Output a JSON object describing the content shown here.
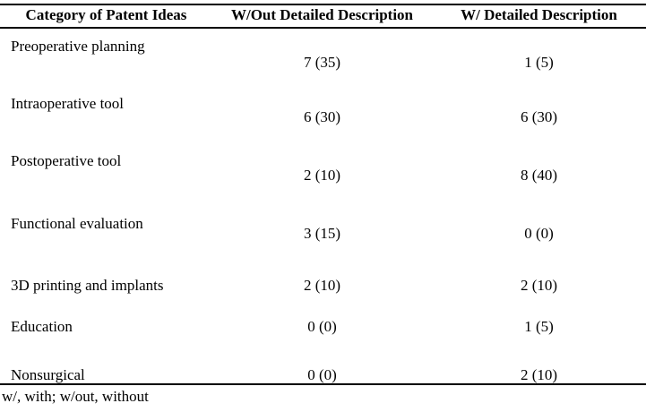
{
  "table": {
    "columns": [
      "Category of Patent Ideas",
      "W/Out Detailed Description",
      "W/ Detailed Description"
    ],
    "rows": [
      {
        "category": "Preoperative planning",
        "without": "7 (35)",
        "with": "1 (5)"
      },
      {
        "category": "Intraoperative tool",
        "without": "6 (30)",
        "with": "6 (30)"
      },
      {
        "category": "Postoperative tool",
        "without": "2 (10)",
        "with": "8 (40)"
      },
      {
        "category": "Functional evaluation",
        "without": "3 (15)",
        "with": "0 (0)"
      },
      {
        "category": "3D printing and implants",
        "without": "2 (10)",
        "with": "2 (10)"
      },
      {
        "category": "Education",
        "without": "0 (0)",
        "with": "1 (5)"
      },
      {
        "category": "Nonsurgical",
        "without": "0 (0)",
        "with": "2 (10)"
      }
    ],
    "footnote": "w/, with; w/out, without"
  },
  "colors": {
    "text": "#000000",
    "rule": "#000000",
    "background": "#ffffff"
  }
}
